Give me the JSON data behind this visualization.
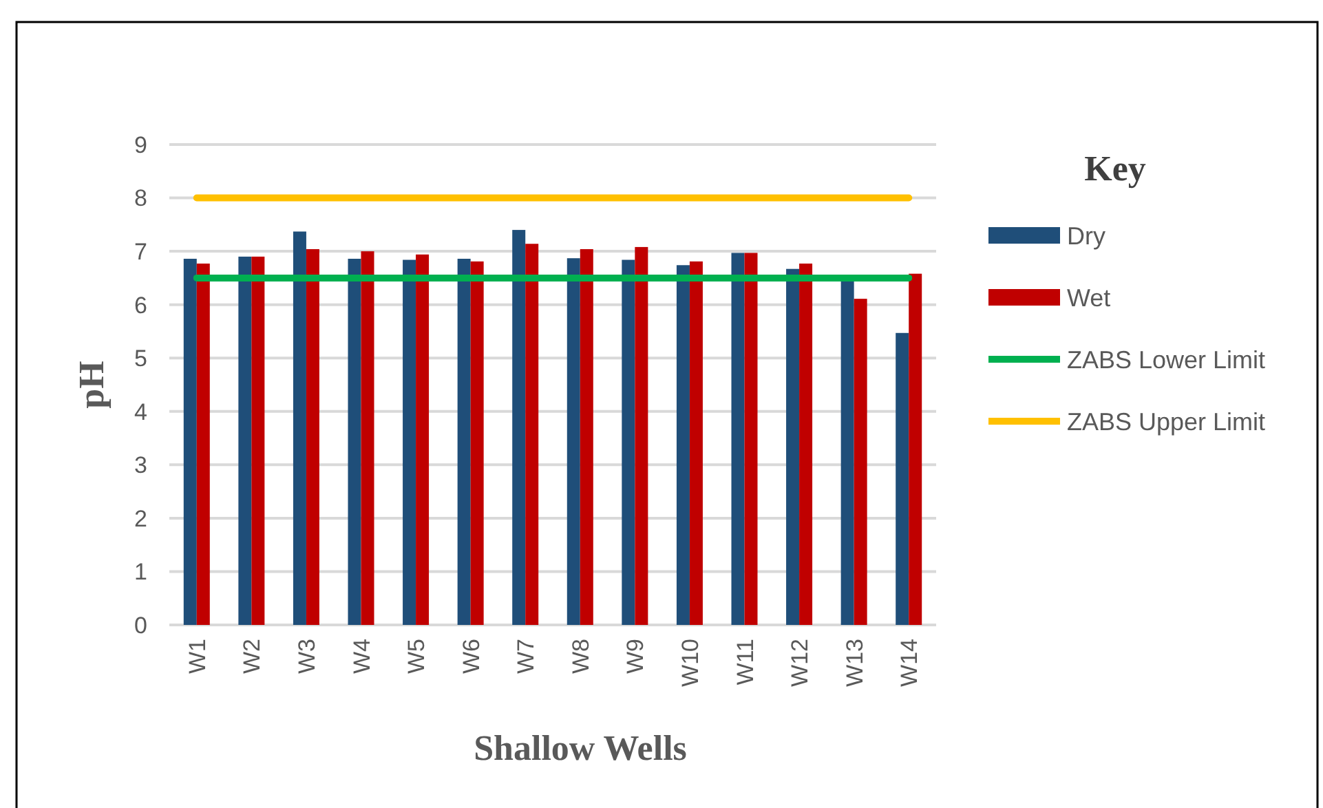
{
  "chart_data": {
    "type": "bar",
    "xlabel": "Shallow Wells",
    "ylabel": "pH",
    "legend_title": "Key",
    "legend": "right",
    "grid": "y",
    "categories": [
      "W1",
      "W2",
      "W3",
      "W4",
      "W5",
      "W6",
      "W7",
      "W8",
      "W9",
      "W10",
      "W11",
      "W12",
      "W13",
      "W14"
    ],
    "ylim": [
      0,
      9
    ],
    "yticks": [
      0,
      1,
      2,
      3,
      4,
      5,
      6,
      7,
      8,
      9
    ],
    "series": [
      {
        "name": "Dry",
        "color": "#1f4e79",
        "values": [
          6.86,
          6.9,
          7.37,
          6.86,
          6.84,
          6.86,
          7.4,
          6.87,
          6.84,
          6.74,
          6.97,
          6.67,
          6.46,
          5.47
        ]
      },
      {
        "name": "Wet",
        "color": "#c00000",
        "values": [
          6.77,
          6.9,
          7.04,
          7.0,
          6.94,
          6.81,
          7.14,
          7.04,
          7.08,
          6.81,
          6.97,
          6.77,
          6.11,
          6.58
        ]
      },
      {
        "name": "ZABS Lower Limit",
        "type": "line",
        "color": "#00b050",
        "values": [
          6.5,
          6.5,
          6.5,
          6.5,
          6.5,
          6.5,
          6.5,
          6.5,
          6.5,
          6.5,
          6.5,
          6.5,
          6.5,
          6.5
        ]
      },
      {
        "name": "ZABS Upper Limit",
        "type": "line",
        "color": "#ffc000",
        "values": [
          8,
          8,
          8,
          8,
          8,
          8,
          8,
          8,
          8,
          8,
          8,
          8,
          8,
          8
        ]
      }
    ]
  }
}
